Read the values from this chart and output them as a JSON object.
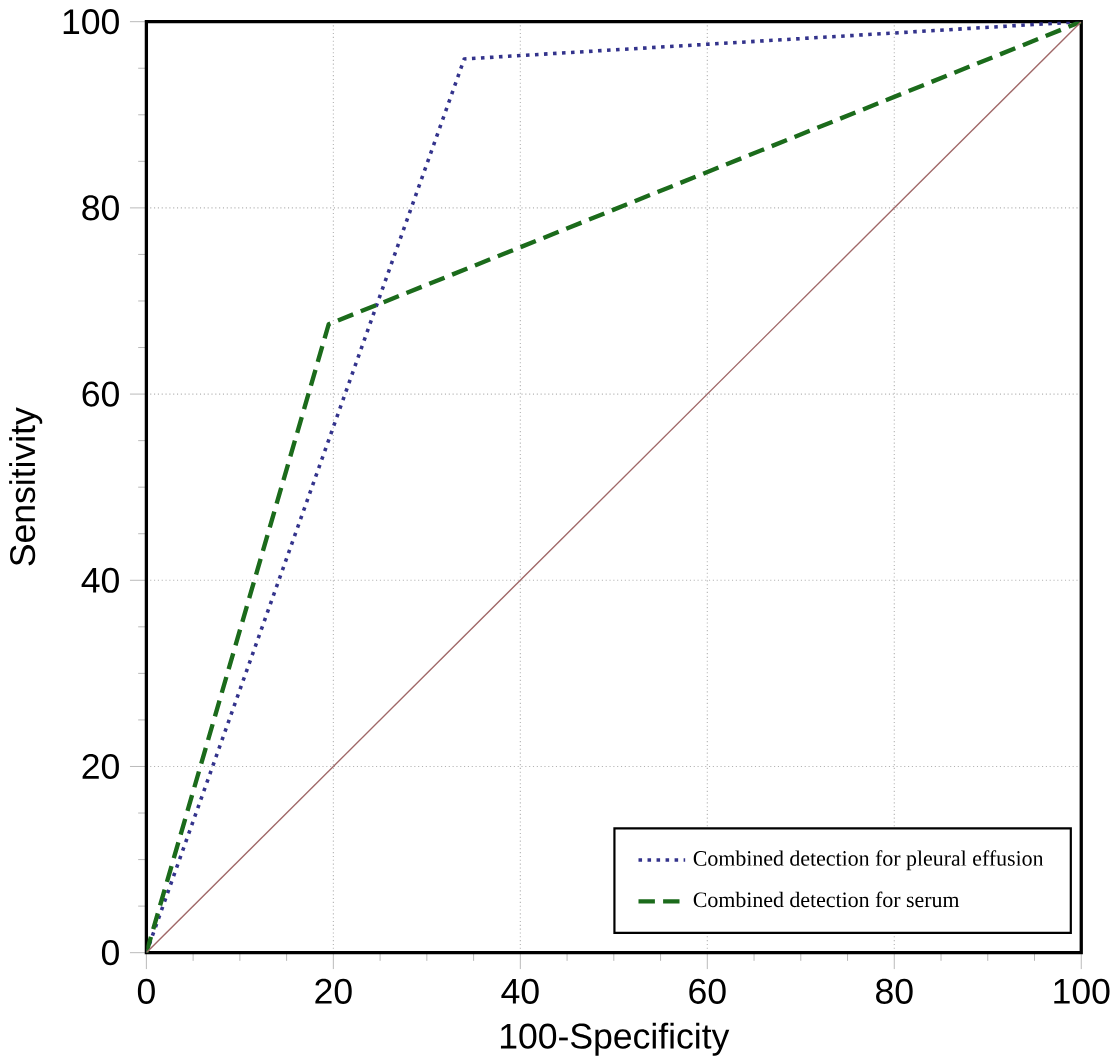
{
  "chart_data": {
    "type": "line",
    "xlabel": "100-Specificity",
    "ylabel": "Sensitivity",
    "xlim": [
      0,
      100
    ],
    "ylim": [
      0,
      100
    ],
    "xticks": [
      0,
      20,
      40,
      60,
      80,
      100
    ],
    "yticks": [
      0,
      20,
      40,
      60,
      80,
      100
    ],
    "grid": true,
    "legend": "bottom right",
    "marker": "none",
    "series": [
      {
        "name": "Combined detection for pleural effusion",
        "color": "#33338c",
        "line_style": "dotted",
        "x": [
          0,
          34,
          100
        ],
        "values": [
          0,
          96,
          100
        ]
      },
      {
        "name": "Combined detection for serum",
        "color": "#1b6b1b",
        "line_style": "dashed",
        "x": [
          0,
          19.5,
          100
        ],
        "values": [
          0,
          67.5,
          100
        ]
      },
      {
        "color": "#a06868",
        "line_style": "solid",
        "x": [
          0,
          100
        ],
        "values": [
          0,
          100
        ]
      }
    ]
  }
}
